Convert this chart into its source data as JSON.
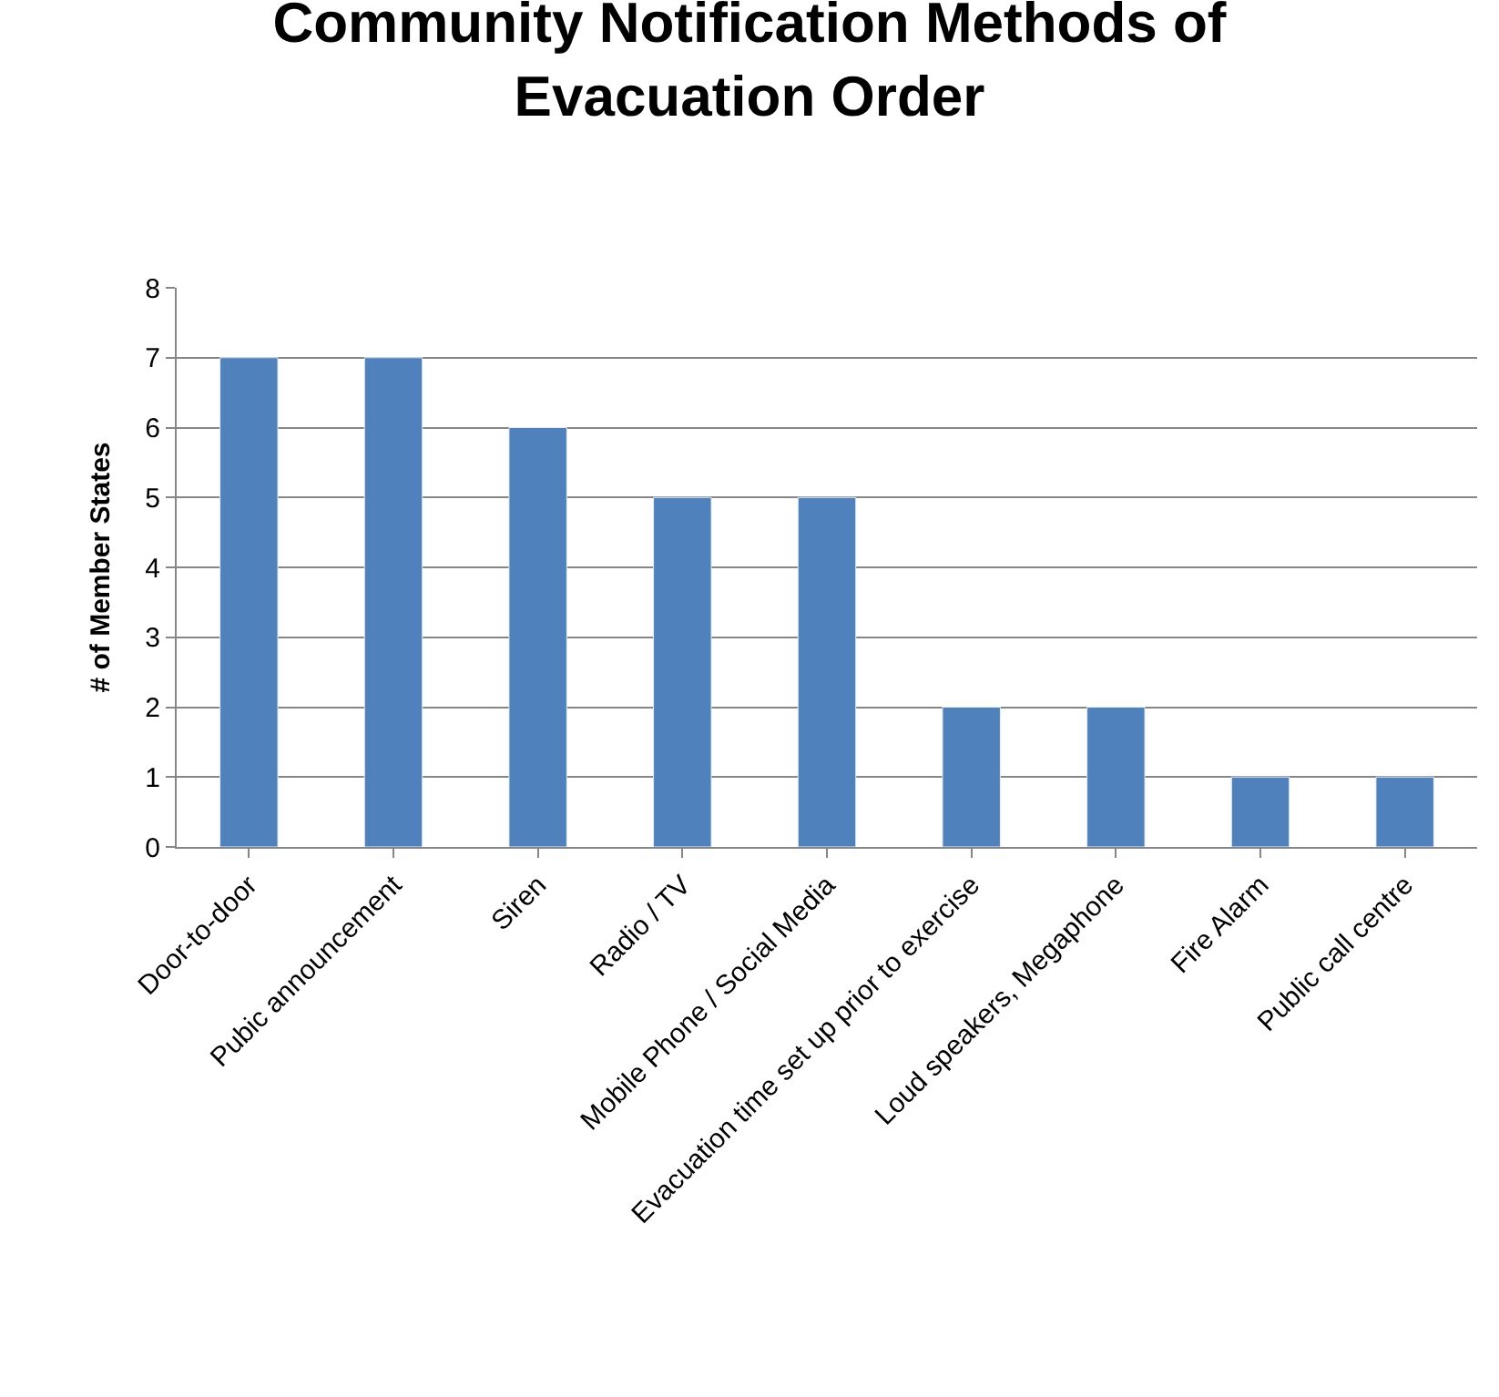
{
  "chart_data": {
    "type": "bar",
    "title": "Community Notification Methods of Evacuation Order",
    "ylabel": "# of Member States",
    "categories": [
      "Door-to-door",
      "Pubic announcement",
      "Siren",
      "Radio / TV",
      "Mobile Phone / Social Media",
      "Evacuation time set up prior to exercise",
      "Loud speakers, Megaphone",
      "Fire Alarm",
      "Public call centre"
    ],
    "values": [
      7,
      7,
      6,
      5,
      5,
      2,
      2,
      1,
      1
    ],
    "color": "#4f81bd",
    "ylim": [
      0,
      8
    ],
    "yticks": [
      0,
      1,
      2,
      3,
      4,
      5,
      6,
      7,
      8
    ],
    "grid": "y",
    "legend": false
  }
}
